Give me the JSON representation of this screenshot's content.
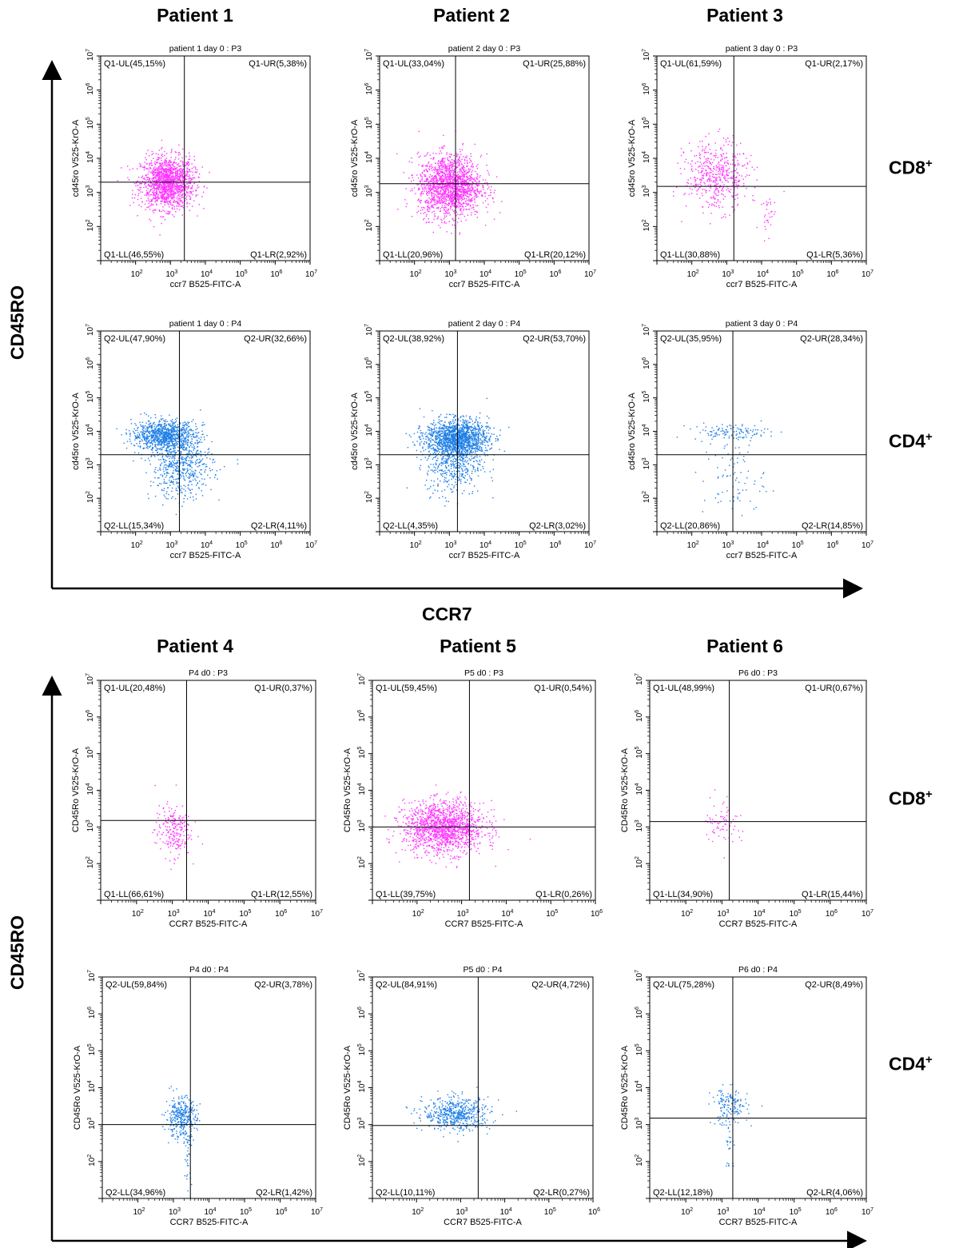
{
  "section_top": {
    "patients": [
      "Patient 1",
      "Patient 2",
      "Patient 3"
    ],
    "y_axis_title": "CD45RO",
    "x_axis_title": "CCR7"
  },
  "section_bottom": {
    "patients": [
      "Patient 4",
      "Patient 5",
      "Patient 6"
    ],
    "y_axis_title": "CD45RO"
  },
  "row_labels": [
    {
      "base": "CD8",
      "sup": "+"
    },
    {
      "base": "CD4",
      "sup": "+"
    },
    {
      "base": "CD8",
      "sup": "+"
    },
    {
      "base": "CD4",
      "sup": "+"
    }
  ],
  "colors": {
    "cd8": "#ff33ff",
    "cd4": "#1e7fe6",
    "line": "#000000"
  },
  "chart_data": [
    {
      "type": "scatter",
      "title": "patient 1 day 0 : P3",
      "xlabel": "ccr7 B525-FITC-A",
      "ylabel": "cd45ro V525-KrO-A",
      "xlim": [
        10,
        10000000
      ],
      "ylim": [
        10,
        10000000
      ],
      "x_scale": "log",
      "y_scale": "log",
      "cell": "CD8",
      "gate": [
        2500,
        2000
      ],
      "quadrants": {
        "UL": "Q1-UL(45,15%)",
        "UR": "Q1-UR(5,38%)",
        "LL": "Q1-LL(46,55%)",
        "LR": "Q1-LR(2,92%)"
      }
    },
    {
      "type": "scatter",
      "title": "patient 2 day 0 : P3",
      "xlabel": "ccr7 B525-FITC-A",
      "ylabel": "cd45ro V525-KrO-A",
      "xlim": [
        10,
        10000000
      ],
      "ylim": [
        10,
        10000000
      ],
      "x_scale": "log",
      "y_scale": "log",
      "cell": "CD8",
      "gate": [
        1500,
        1800
      ],
      "quadrants": {
        "UL": "Q1-UL(33,04%)",
        "UR": "Q1-UR(25,88%)",
        "LL": "Q1-LL(20,96%)",
        "LR": "Q1-LR(20,12%)"
      }
    },
    {
      "type": "scatter",
      "title": "patient 3 day 0 : P3",
      "xlabel": "ccr7 B525-FITC-A",
      "ylabel": "cd45ro V525-KrO-A",
      "xlim": [
        10,
        10000000
      ],
      "ylim": [
        10,
        10000000
      ],
      "x_scale": "log",
      "y_scale": "log",
      "cell": "CD8",
      "gate": [
        1600,
        1500
      ],
      "quadrants": {
        "UL": "Q1-UL(61,59%)",
        "UR": "Q1-UR(2,17%)",
        "LL": "Q1-LL(30,88%)",
        "LR": "Q1-LR(5,36%)"
      }
    },
    {
      "type": "scatter",
      "title": "patient 1 day 0 : P4",
      "xlabel": "ccr7 B525-FITC-A",
      "ylabel": "cd45ro V525-KrO-A",
      "xlim": [
        10,
        10000000
      ],
      "ylim": [
        10,
        10000000
      ],
      "x_scale": "log",
      "y_scale": "log",
      "cell": "CD4",
      "gate": [
        1800,
        2000
      ],
      "quadrants": {
        "UL": "Q2-UL(47,90%)",
        "UR": "Q2-UR(32,66%)",
        "LL": "Q2-LL(15,34%)",
        "LR": "Q2-LR(4,11%)"
      }
    },
    {
      "type": "scatter",
      "title": "patient 2 day 0 : P4",
      "xlabel": "ccr7 B525-FITC-A",
      "ylabel": "cd45ro V525-KrO-A",
      "xlim": [
        10,
        10000000
      ],
      "ylim": [
        10,
        10000000
      ],
      "x_scale": "log",
      "y_scale": "log",
      "cell": "CD4",
      "gate": [
        1700,
        2000
      ],
      "quadrants": {
        "UL": "Q2-UL(38,92%)",
        "UR": "Q2-UR(53,70%)",
        "LL": "Q2-LL(4,35%)",
        "LR": "Q2-LR(3,02%)"
      }
    },
    {
      "type": "scatter",
      "title": "patient 3 day 0 : P4",
      "xlabel": "ccr7 B525-FITC-A",
      "ylabel": "cd45ro V525-KrO-A",
      "xlim": [
        10,
        10000000
      ],
      "ylim": [
        10,
        10000000
      ],
      "x_scale": "log",
      "y_scale": "log",
      "cell": "CD4",
      "gate": [
        1500,
        2000
      ],
      "quadrants": {
        "UL": "Q2-UL(35,95%)",
        "UR": "Q2-UR(28,34%)",
        "LL": "Q2-LL(20,86%)",
        "LR": "Q2-LR(14,85%)"
      }
    },
    {
      "type": "scatter",
      "title": "P4 d0 : P3",
      "xlabel": "CCR7 B525-FITC-A",
      "ylabel": "CD45Ro V525-KrO-A",
      "xlim": [
        10,
        10000000
      ],
      "ylim": [
        10,
        10000000
      ],
      "x_scale": "log",
      "y_scale": "log",
      "cell": "CD8",
      "gate": [
        2500,
        1500
      ],
      "quadrants": {
        "UL": "Q1-UL(20,48%)",
        "UR": "Q1-UR(0,37%)",
        "LL": "Q1-LL(66,61%)",
        "LR": "Q1-LR(12,55%)"
      }
    },
    {
      "type": "scatter",
      "title": "P5 d0 : P3",
      "xlabel": "CCR7 B525-FITC-A",
      "ylabel": "CD45Ro V525-KrO-A",
      "xlim": [
        10,
        1000000
      ],
      "ylim": [
        10,
        10000000
      ],
      "x_scale": "log",
      "y_scale": "log",
      "cell": "CD8",
      "gate": [
        1500,
        1000
      ],
      "quadrants": {
        "UL": "Q1-UL(59,45%)",
        "UR": "Q1-UR(0,54%)",
        "LL": "Q1-LL(39,75%)",
        "LR": "Q1-LR(0,26%)"
      }
    },
    {
      "type": "scatter",
      "title": "P6 d0 : P3",
      "xlabel": "CCR7 B525-FITC-A",
      "ylabel": "CD45Ro V525-KrO-A",
      "xlim": [
        10,
        10000000
      ],
      "ylim": [
        10,
        10000000
      ],
      "x_scale": "log",
      "y_scale": "log",
      "cell": "CD8",
      "gate": [
        1600,
        1400
      ],
      "quadrants": {
        "UL": "Q1-UL(48,99%)",
        "UR": "Q1-UR(0,67%)",
        "LL": "Q1-LL(34,90%)",
        "LR": "Q1-LR(15,44%)"
      }
    },
    {
      "type": "scatter",
      "title": "P4 d0 : P4",
      "xlabel": "CCR7 B525-FITC-A",
      "ylabel": "CD45Ro V525-KrO-A",
      "xlim": [
        10,
        10000000
      ],
      "ylim": [
        10,
        10000000
      ],
      "x_scale": "log",
      "y_scale": "log",
      "cell": "CD4",
      "gate": [
        3000,
        1000
      ],
      "quadrants": {
        "UL": "Q2-UL(59,84%)",
        "UR": "Q2-UR(3,78%)",
        "LL": "Q2-LL(34,96%)",
        "LR": "Q2-LR(1,42%)"
      }
    },
    {
      "type": "scatter",
      "title": "P5 d0 : P4",
      "xlabel": "CCR7 B525-FITC-A",
      "ylabel": "CD45Ro V525-KrO-A",
      "xlim": [
        10,
        1000000
      ],
      "ylim": [
        10,
        10000000
      ],
      "x_scale": "log",
      "y_scale": "log",
      "cell": "CD4",
      "gate": [
        2500,
        950
      ],
      "quadrants": {
        "UL": "Q2-UL(84,91%)",
        "UR": "Q2-UR(4,72%)",
        "LL": "Q2-LL(10,11%)",
        "LR": "Q2-LR(0,27%)"
      }
    },
    {
      "type": "scatter",
      "title": "P6 d0 : P4",
      "xlabel": "CCR7 B525-FITC-A",
      "ylabel": "CD45Ro V525-KrO-A",
      "xlim": [
        10,
        10000000
      ],
      "ylim": [
        10,
        10000000
      ],
      "x_scale": "log",
      "y_scale": "log",
      "cell": "CD4",
      "gate": [
        2000,
        1500
      ],
      "quadrants": {
        "UL": "Q2-UL(75,28%)",
        "UR": "Q2-UR(8,49%)",
        "LL": "Q2-LL(12,18%)",
        "LR": "Q2-LR(4,06%)"
      }
    }
  ]
}
